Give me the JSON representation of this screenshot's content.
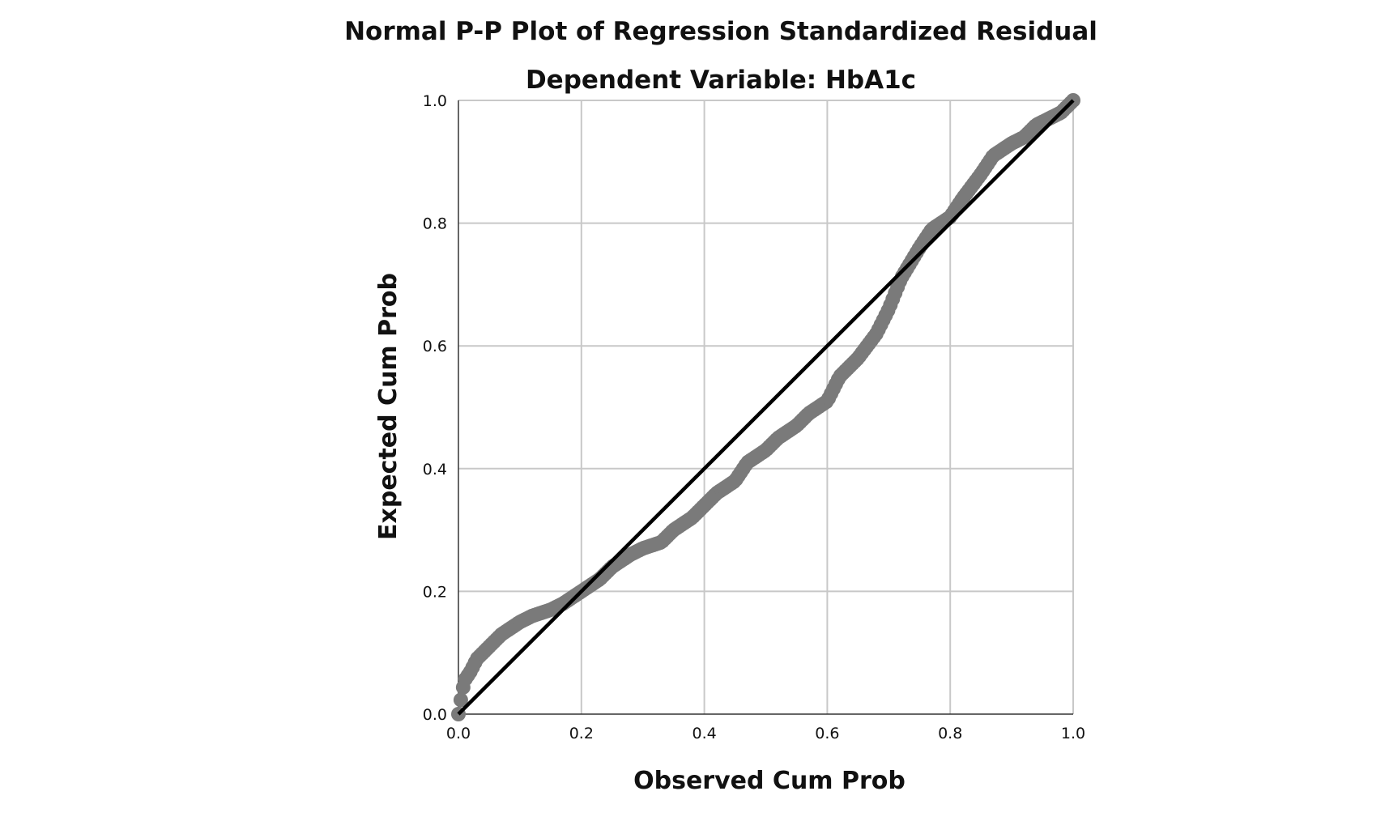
{
  "chart_data": {
    "type": "scatter",
    "title": "Normal P-P Plot of Regression Standardized Residual",
    "subtitle": "Dependent Variable: HbA1c",
    "xlabel": "Observed Cum Prob",
    "ylabel": "Expected Cum Prob",
    "xlim": [
      0,
      1
    ],
    "ylim": [
      0,
      1
    ],
    "xticks": [
      "0.0",
      "0.2",
      "0.4",
      "0.6",
      "0.8",
      "1.0"
    ],
    "yticks": [
      "0.0",
      "0.2",
      "0.4",
      "0.6",
      "0.8",
      "1.0"
    ],
    "grid": true,
    "reference_line": {
      "x": [
        0,
        1
      ],
      "y": [
        0,
        1
      ]
    },
    "point_color": "#7a7a7a",
    "line_color": "#000000",
    "curve": {
      "x": [
        0.0,
        0.005,
        0.01,
        0.02,
        0.03,
        0.05,
        0.07,
        0.1,
        0.12,
        0.15,
        0.17,
        0.2,
        0.23,
        0.25,
        0.28,
        0.3,
        0.33,
        0.35,
        0.38,
        0.4,
        0.42,
        0.45,
        0.47,
        0.5,
        0.52,
        0.55,
        0.57,
        0.6,
        0.62,
        0.65,
        0.68,
        0.7,
        0.72,
        0.75,
        0.77,
        0.8,
        0.82,
        0.85,
        0.87,
        0.9,
        0.92,
        0.94,
        0.96,
        0.98,
        1.0
      ],
      "y": [
        0.0,
        0.03,
        0.055,
        0.07,
        0.09,
        0.11,
        0.13,
        0.15,
        0.16,
        0.17,
        0.18,
        0.2,
        0.22,
        0.24,
        0.26,
        0.27,
        0.28,
        0.3,
        0.32,
        0.34,
        0.36,
        0.38,
        0.41,
        0.43,
        0.45,
        0.47,
        0.49,
        0.51,
        0.55,
        0.58,
        0.62,
        0.66,
        0.71,
        0.76,
        0.79,
        0.81,
        0.84,
        0.88,
        0.91,
        0.93,
        0.94,
        0.96,
        0.97,
        0.98,
        1.0
      ]
    },
    "n_points": 260
  }
}
